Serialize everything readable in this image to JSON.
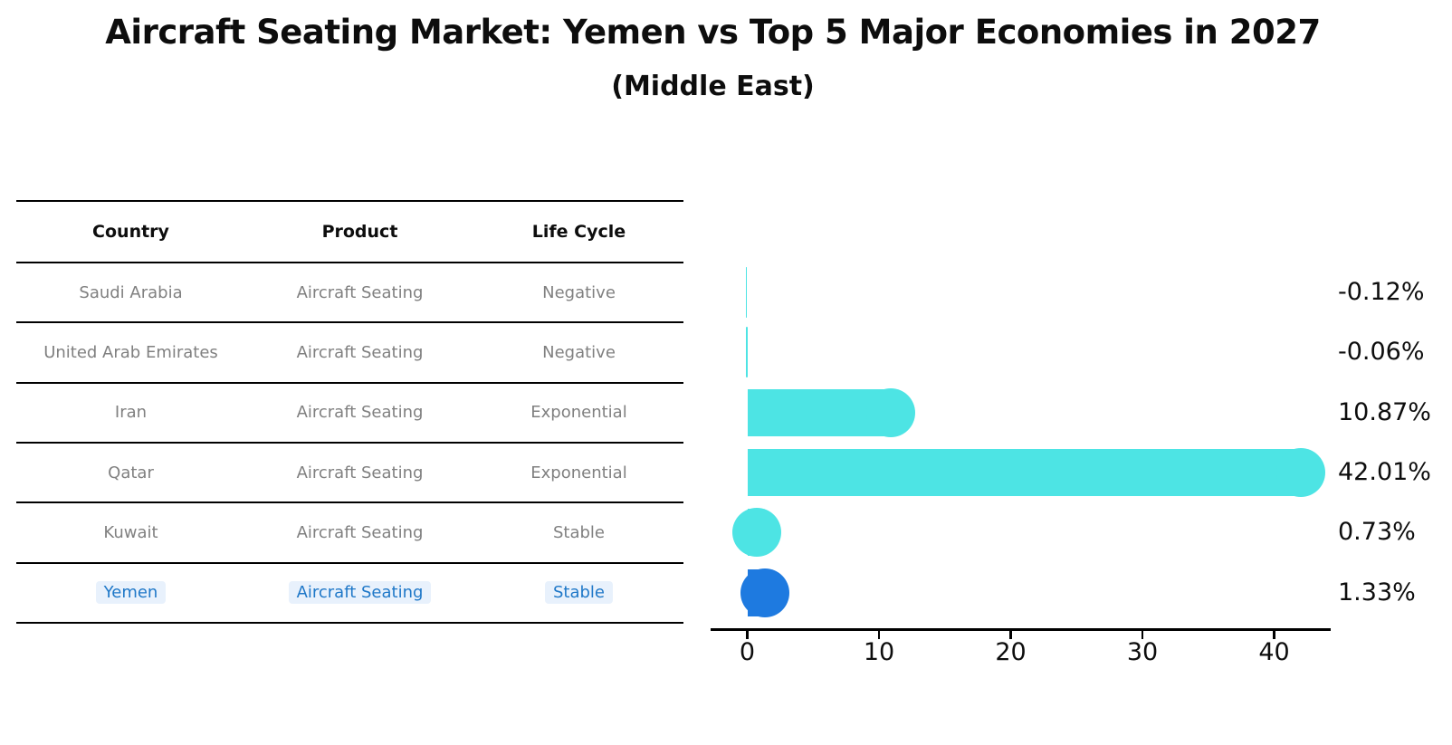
{
  "title": "Aircraft Seating Market: Yemen vs Top 5 Major Economies in 2027",
  "subtitle": "(Middle East)",
  "table": {
    "headers": [
      "Country",
      "Product",
      "Life Cycle"
    ],
    "rows": [
      {
        "country": "Saudi Arabia",
        "product": "Aircraft Seating",
        "life_cycle": "Negative",
        "highlight": false
      },
      {
        "country": "United Arab Emirates",
        "product": "Aircraft Seating",
        "life_cycle": "Negative",
        "highlight": false
      },
      {
        "country": "Iran",
        "product": "Aircraft Seating",
        "life_cycle": "Exponential",
        "highlight": false
      },
      {
        "country": "Qatar",
        "product": "Aircraft Seating",
        "life_cycle": "Exponential",
        "highlight": false
      },
      {
        "country": "Kuwait",
        "product": "Aircraft Seating",
        "life_cycle": "Stable",
        "highlight": false
      },
      {
        "country": "Yemen",
        "product": "Aircraft Seating",
        "life_cycle": "Stable",
        "highlight": true
      }
    ]
  },
  "chart_data": {
    "type": "bar",
    "orientation": "horizontal",
    "title": "Aircraft Seating Market: Yemen vs Top 5 Major Economies in 2027 (Middle East)",
    "categories": [
      "Saudi Arabia",
      "United Arab Emirates",
      "Iran",
      "Qatar",
      "Kuwait",
      "Yemen"
    ],
    "values": [
      -0.12,
      -0.06,
      10.87,
      42.01,
      0.73,
      1.33
    ],
    "labels": [
      "-0.12%",
      "-0.06%",
      "10.87%",
      "42.01%",
      "0.73%",
      "1.33%"
    ],
    "x_ticks": [
      "0",
      "10",
      "20",
      "30",
      "40"
    ],
    "x_tick_values": [
      0,
      10,
      20,
      30,
      40
    ],
    "xlim": [
      -2.8,
      44.3
    ],
    "grid": false,
    "legend": "none",
    "highlight_index": 5
  },
  "colors": {
    "bar_cyan": "#4DE4E4",
    "bar_blue": "#1E7AE0",
    "highlight_text": "#1F78C8",
    "cell_text_gray": "#808080",
    "axis_black": "#000000"
  }
}
